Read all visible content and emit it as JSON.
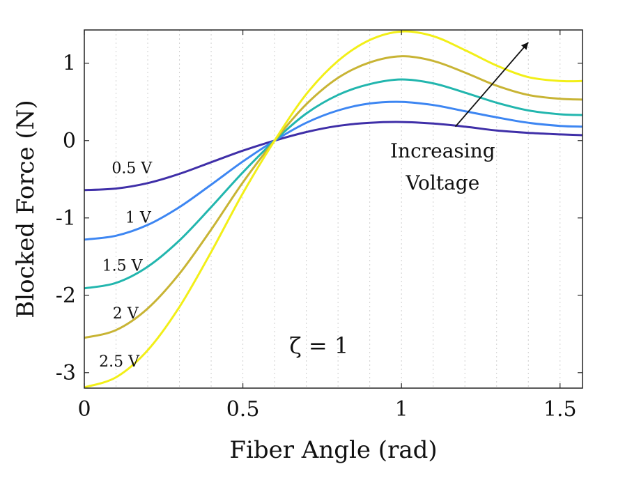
{
  "chart_data": {
    "type": "line",
    "xlabel": "Fiber Angle (rad)",
    "ylabel": "Blocked Force (N)",
    "xlim": [
      0,
      1.5708
    ],
    "ylim": [
      -3.2,
      1.43
    ],
    "x_ticks": [
      0,
      0.5,
      1,
      1.5
    ],
    "x_tick_labels": [
      "0",
      "0.5",
      "1",
      "1.5"
    ],
    "y_ticks": [
      1,
      0,
      -1,
      -2,
      -3
    ],
    "y_tick_labels": [
      "1",
      "0",
      "-1",
      "-2",
      "-3"
    ],
    "grid": "vertical-dotted",
    "x": [
      0,
      0.1,
      0.2,
      0.3,
      0.4,
      0.5,
      0.6,
      0.7,
      0.8,
      0.9,
      1.0,
      1.1,
      1.2,
      1.3,
      1.4,
      1.5,
      1.5708
    ],
    "series": [
      {
        "name": "0.5 V",
        "color": "#3f2fa8",
        "values": [
          -0.64,
          -0.62,
          -0.55,
          -0.43,
          -0.28,
          -0.13,
          0.0,
          0.11,
          0.19,
          0.23,
          0.24,
          0.22,
          0.18,
          0.13,
          0.1,
          0.08,
          0.07
        ]
      },
      {
        "name": "1 V",
        "color": "#3d86f2",
        "values": [
          -1.28,
          -1.23,
          -1.09,
          -0.86,
          -0.57,
          -0.27,
          0.0,
          0.23,
          0.39,
          0.48,
          0.5,
          0.46,
          0.38,
          0.3,
          0.23,
          0.19,
          0.18
        ]
      },
      {
        "name": "1.5 V",
        "color": "#22b6ae",
        "values": [
          -1.91,
          -1.84,
          -1.63,
          -1.29,
          -0.86,
          -0.41,
          0.0,
          0.35,
          0.59,
          0.73,
          0.79,
          0.74,
          0.62,
          0.49,
          0.39,
          0.34,
          0.33
        ]
      },
      {
        "name": "2 V",
        "color": "#c8b434",
        "values": [
          -2.55,
          -2.45,
          -2.17,
          -1.72,
          -1.15,
          -0.54,
          0.0,
          0.47,
          0.81,
          1.01,
          1.09,
          1.03,
          0.88,
          0.71,
          0.59,
          0.54,
          0.53
        ]
      },
      {
        "name": "2.5 V",
        "color": "#f2ef18",
        "values": [
          -3.19,
          -3.06,
          -2.71,
          -2.15,
          -1.44,
          -0.68,
          0.0,
          0.6,
          1.03,
          1.3,
          1.41,
          1.35,
          1.17,
          0.97,
          0.82,
          0.77,
          0.77
        ]
      }
    ],
    "series_labels": [
      {
        "text": "0.5 V",
        "x": 0.15,
        "y": -0.42
      },
      {
        "text": "1 V",
        "x": 0.17,
        "y": -1.06
      },
      {
        "text": "1.5 V",
        "x": 0.12,
        "y": -1.68
      },
      {
        "text": "2 V",
        "x": 0.13,
        "y": -2.3
      },
      {
        "text": "2.5 V",
        "x": 0.11,
        "y": -2.92
      }
    ],
    "annotations": {
      "arrow_label_line1": "Increasing",
      "arrow_label_line2": "Voltage",
      "arrow_from": {
        "x": 1.17,
        "y": 0.18
      },
      "arrow_to": {
        "x": 1.4,
        "y": 1.27
      },
      "label_anchor": {
        "x": 1.13,
        "y": -0.22
      },
      "zeta_text": "ζ = 1",
      "zeta_anchor": {
        "x": 0.74,
        "y": -2.75
      }
    }
  }
}
